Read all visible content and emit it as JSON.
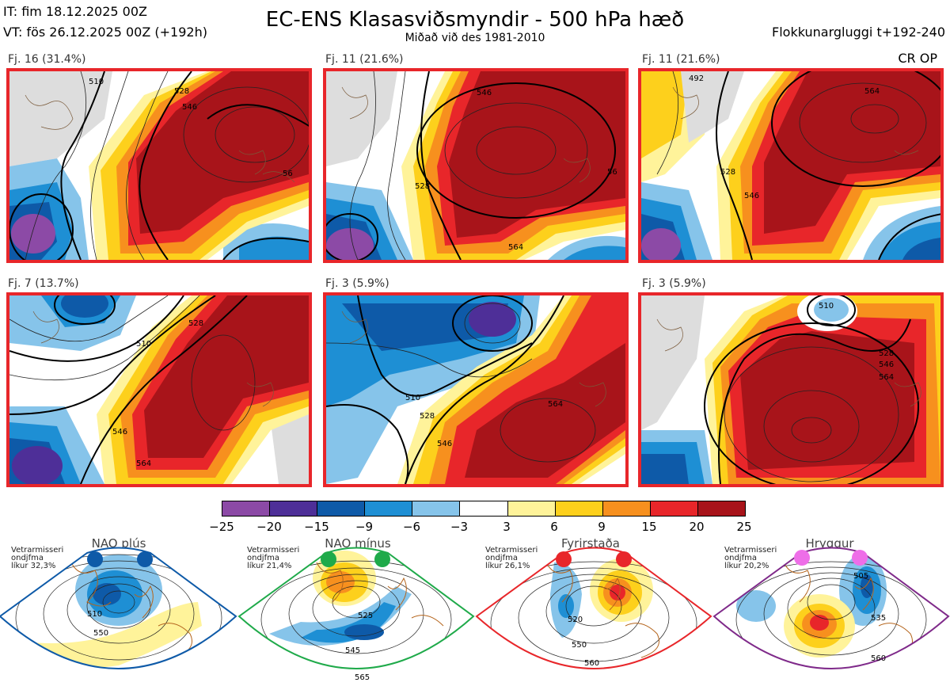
{
  "header": {
    "it_line": "IT: fim 18.12.2025 00Z",
    "vt_line": "VT: fös 26.12.2025 00Z  (+192h)",
    "title": "EC-ENS Klasasviðsmyndir - 500 hPa hæð",
    "subtitle": "Miðað við des 1981-2010",
    "window": "Flokkunargluggi t+192-240",
    "cr_op": "CR OP"
  },
  "panels": [
    {
      "label": "Fj. 16 (31.4%)",
      "c1": "510",
      "c2": "528",
      "c3": "546",
      "c4": "56"
    },
    {
      "label": "Fj. 11 (21.6%)",
      "c1": "528",
      "c2": "546",
      "c3": "564",
      "c4": "56"
    },
    {
      "label": "Fj. 11 (21.6%)",
      "c1": "492",
      "c2": "528",
      "c3": "546",
      "c4": "564"
    },
    {
      "label": "Fj. 7 (13.7%)",
      "c1": "510",
      "c2": "528",
      "c3": "546",
      "c4": "564"
    },
    {
      "label": "Fj. 3 (5.9%)",
      "c1": "510",
      "c2": "528",
      "c3": "546",
      "c4": "564"
    },
    {
      "label": "Fj. 3 (5.9%)",
      "c1": "510",
      "c2": "528",
      "c3": "546",
      "c4": "564"
    }
  ],
  "colorbar": {
    "ticks": [
      "−25",
      "−20",
      "−15",
      "−9",
      "−6",
      "−3",
      "3",
      "6",
      "9",
      "15",
      "20",
      "25"
    ],
    "colors": [
      "#8c4aa6",
      "#4e2f98",
      "#0e5aa8",
      "#1e8fd4",
      "#86c4ea",
      "#ffffff",
      "#fff39a",
      "#fdd01c",
      "#f7901e",
      "#e8262a",
      "#a8141a"
    ]
  },
  "regimes": [
    {
      "title": "NAO plús",
      "l1": "Vetrarmisseri",
      "l2": "ondjfma",
      "l3": "líkur 32,3%",
      "c1": "510",
      "c2": "550",
      "color": "#0e5aa8"
    },
    {
      "title": "NAO mínus",
      "l1": "Vetrarmisseri",
      "l2": "ondjfma",
      "l3": "líkur 21,4%",
      "c1": "525",
      "c2": "545",
      "c3": "565",
      "color": "#1faa4a"
    },
    {
      "title": "Fyrirstaða",
      "l1": "Vetrarmisseri",
      "l2": "ondjfma",
      "l3": "líkur 26,1%",
      "c1": "520",
      "c2": "550",
      "c3": "560",
      "color": "#e8262a"
    },
    {
      "title": "Hryggur",
      "l1": "Vetrarmisseri",
      "l2": "ondjfma",
      "l3": "líkur 20,2%",
      "c1": "505",
      "c2": "535",
      "c3": "560",
      "color": "#ee6ee8"
    }
  ]
}
